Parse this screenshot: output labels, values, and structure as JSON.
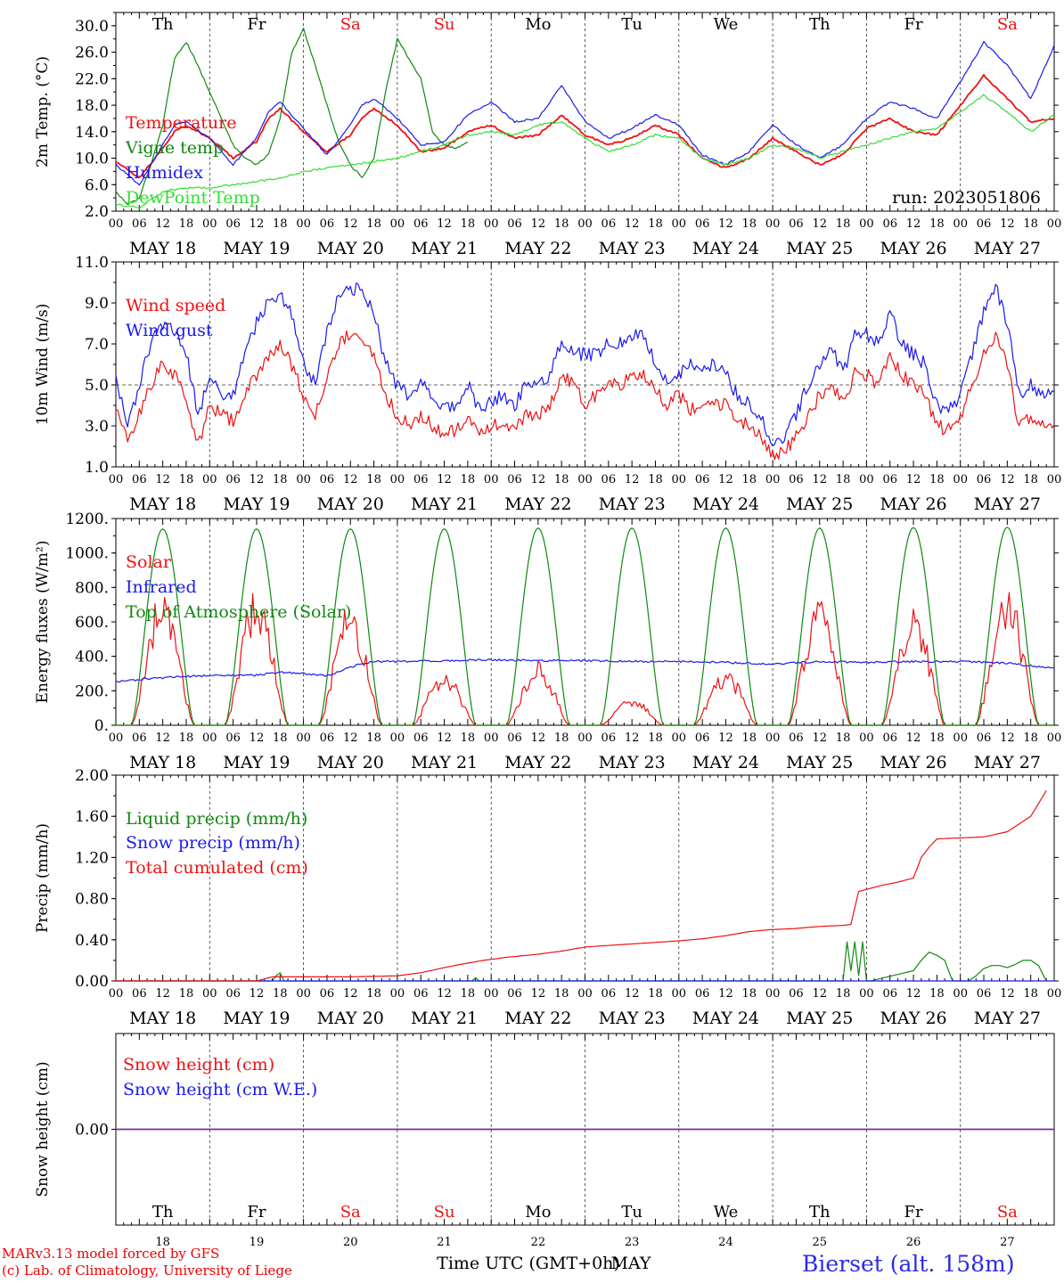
{
  "meta": {
    "run_label": "run: 2023051806",
    "footer_model": "MARv3.13 model forced by GFS",
    "footer_lab": "(c) Lab. of Climatology, University of Liege",
    "x_title": "Time UTC (GMT+0h)",
    "x_month": "MAY",
    "station": "Bierset (alt. 158m)"
  },
  "time_axis": {
    "hour_ticks": [
      "00",
      "06",
      "12",
      "18"
    ],
    "dates": [
      "MAY 18",
      "MAY 19",
      "MAY 20",
      "MAY 21",
      "MAY 22",
      "MAY 23",
      "MAY 24",
      "MAY 25",
      "MAY 26",
      "MAY 27"
    ],
    "day_numbers": [
      "18",
      "19",
      "20",
      "21",
      "22",
      "23",
      "24",
      "25",
      "26",
      "27"
    ],
    "weekdays": [
      "Th",
      "Fr",
      "Sa",
      "Su",
      "Mo",
      "Tu",
      "We",
      "Th",
      "Fr",
      "Sa"
    ],
    "weekend_days": [
      2,
      3,
      9
    ]
  },
  "colors": {
    "red": "#ee1111",
    "blue": "#1a1aee",
    "green": "#118811",
    "lightgreen": "#33dd33",
    "purple": "#7a2a9a",
    "axis": "#000000"
  },
  "chart_data": [
    {
      "type": "line",
      "ylabel": "2m Temp. (°C)",
      "ylim": [
        2.0,
        32.0
      ],
      "yticks": [
        "2.0",
        "6.0",
        "10.0",
        "14.0",
        "18.0",
        "22.0",
        "26.0",
        "30.0"
      ],
      "x_unit": "hours since MAY 18 00 UTC",
      "series": [
        {
          "name": "Temperature",
          "color": "red",
          "x": [
            0,
            6,
            12,
            15,
            18,
            24,
            30,
            36,
            39,
            42,
            48,
            54,
            60,
            63,
            66,
            72,
            78,
            84,
            90,
            96,
            102,
            108,
            114,
            120,
            126,
            132,
            138,
            144,
            150,
            156,
            162,
            168,
            174,
            180,
            186,
            192,
            198,
            204,
            210,
            216,
            222,
            228,
            234,
            240
          ],
          "y": [
            9.5,
            7.0,
            11.5,
            14.0,
            15.0,
            13.0,
            10.0,
            12.5,
            16.0,
            17.5,
            14.0,
            11.0,
            13.5,
            16.0,
            17.5,
            15.0,
            11.0,
            11.5,
            14.0,
            15.0,
            13.0,
            13.5,
            16.5,
            13.5,
            12.0,
            13.0,
            15.0,
            13.5,
            10.0,
            8.5,
            10.0,
            13.0,
            11.0,
            9.0,
            10.5,
            14.5,
            16.0,
            14.0,
            13.5,
            18.0,
            22.5,
            19.0,
            15.5,
            16.0
          ]
        },
        {
          "name": "Vigne temp",
          "color": "green",
          "x": [
            0,
            3,
            6,
            9,
            12,
            15,
            18,
            21,
            24,
            27,
            30,
            33,
            36,
            39,
            42,
            45,
            48,
            51,
            54,
            57,
            60,
            63,
            66,
            69,
            72,
            75,
            78,
            81,
            84,
            87,
            90
          ],
          "y": [
            5.0,
            3.0,
            4.0,
            9.0,
            15.0,
            25.0,
            27.5,
            24.0,
            20.0,
            16.0,
            12.0,
            10.0,
            9.0,
            10.5,
            16.0,
            26.0,
            29.5,
            24.0,
            18.0,
            12.5,
            9.0,
            7.0,
            10.0,
            20.0,
            28.0,
            25.0,
            22.0,
            14.0,
            12.0,
            11.5,
            12.5
          ]
        },
        {
          "name": "Humidex",
          "color": "blue",
          "x": [
            0,
            6,
            12,
            15,
            18,
            24,
            30,
            36,
            39,
            42,
            48,
            54,
            60,
            63,
            66,
            72,
            78,
            84,
            90,
            96,
            102,
            108,
            114,
            120,
            126,
            132,
            138,
            144,
            150,
            156,
            162,
            168,
            174,
            180,
            186,
            192,
            198,
            204,
            210,
            216,
            222,
            228,
            234,
            240
          ],
          "y": [
            9.0,
            6.0,
            12.0,
            15.0,
            15.5,
            13.0,
            9.0,
            13.0,
            17.0,
            18.5,
            14.5,
            10.5,
            15.0,
            18.0,
            19.0,
            16.0,
            12.0,
            12.5,
            16.5,
            18.5,
            15.5,
            16.0,
            21.0,
            15.5,
            13.0,
            14.5,
            16.5,
            15.0,
            10.5,
            9.0,
            11.0,
            15.0,
            12.0,
            10.0,
            12.0,
            16.0,
            18.5,
            17.5,
            16.0,
            21.5,
            27.5,
            24.0,
            19.0,
            27.0
          ]
        },
        {
          "name": "DewPoint Temp",
          "color": "lightgreen",
          "x": [
            0,
            6,
            12,
            18,
            24,
            30,
            36,
            42,
            48,
            54,
            60,
            66,
            72,
            78,
            84,
            90,
            96,
            102,
            108,
            114,
            120,
            126,
            132,
            138,
            144,
            150,
            156,
            162,
            168,
            174,
            180,
            186,
            192,
            198,
            204,
            210,
            216,
            222,
            228,
            234,
            240
          ],
          "y": [
            3.0,
            2.5,
            5.0,
            5.5,
            5.5,
            6.0,
            6.5,
            7.0,
            8.0,
            8.5,
            9.0,
            9.5,
            10.0,
            11.0,
            12.0,
            13.5,
            14.0,
            13.5,
            15.0,
            15.5,
            13.0,
            11.0,
            12.0,
            13.5,
            13.0,
            10.0,
            9.0,
            10.0,
            12.0,
            11.5,
            10.0,
            11.0,
            12.0,
            13.0,
            14.0,
            14.5,
            17.0,
            19.5,
            17.0,
            14.0,
            16.5
          ]
        }
      ]
    },
    {
      "type": "line",
      "ylabel": "10m Wind (m/s)",
      "ylim": [
        1.0,
        11.0
      ],
      "yticks": [
        "1.0",
        "3.0",
        "5.0",
        "7.0",
        "9.0",
        "11.0"
      ],
      "ref_line": 5.0,
      "x_unit": "hours since MAY 18 00 UTC",
      "series": [
        {
          "name": "Wind speed",
          "color": "red",
          "x": [
            0,
            3,
            6,
            9,
            12,
            15,
            18,
            21,
            24,
            27,
            30,
            33,
            36,
            39,
            42,
            45,
            48,
            51,
            54,
            57,
            60,
            63,
            66,
            69,
            72,
            75,
            78,
            81,
            84,
            87,
            90,
            93,
            96,
            99,
            102,
            105,
            108,
            111,
            114,
            117,
            120,
            123,
            126,
            129,
            132,
            135,
            138,
            141,
            144,
            147,
            150,
            153,
            156,
            159,
            162,
            165,
            168,
            171,
            174,
            177,
            180,
            183,
            186,
            189,
            192,
            195,
            198,
            201,
            204,
            207,
            210,
            213,
            216,
            219,
            222,
            225,
            228,
            231,
            234,
            237,
            240
          ],
          "y": [
            4.0,
            2.2,
            3.5,
            5.0,
            6.0,
            5.5,
            4.5,
            2.0,
            4.0,
            3.5,
            3.2,
            4.5,
            5.5,
            6.5,
            7.0,
            6.0,
            4.5,
            3.5,
            5.5,
            7.0,
            7.5,
            7.0,
            6.5,
            4.5,
            3.5,
            3.0,
            3.5,
            3.0,
            2.5,
            2.8,
            3.5,
            2.5,
            3.0,
            3.2,
            2.8,
            3.5,
            3.5,
            4.0,
            5.5,
            5.0,
            4.0,
            4.5,
            5.0,
            5.0,
            5.3,
            5.5,
            4.8,
            4.0,
            4.5,
            3.8,
            3.9,
            4.2,
            4.0,
            3.3,
            3.0,
            2.5,
            1.5,
            1.8,
            2.5,
            3.5,
            4.5,
            5.0,
            4.0,
            5.5,
            5.5,
            5.0,
            6.5,
            5.5,
            5.0,
            4.5,
            3.0,
            2.8,
            3.5,
            5.0,
            6.5,
            7.5,
            6.0,
            3.0,
            3.5,
            3.0,
            3.2
          ]
        },
        {
          "name": "Wind gust",
          "color": "blue",
          "x": [
            0,
            3,
            6,
            9,
            12,
            15,
            18,
            21,
            24,
            27,
            30,
            33,
            36,
            39,
            42,
            45,
            48,
            51,
            54,
            57,
            60,
            63,
            66,
            69,
            72,
            75,
            78,
            81,
            84,
            87,
            90,
            93,
            96,
            99,
            102,
            105,
            108,
            111,
            114,
            117,
            120,
            123,
            126,
            129,
            132,
            135,
            138,
            141,
            144,
            147,
            150,
            153,
            156,
            159,
            162,
            165,
            168,
            171,
            174,
            177,
            180,
            183,
            186,
            189,
            192,
            195,
            198,
            201,
            204,
            207,
            210,
            213,
            216,
            219,
            222,
            225,
            228,
            231,
            234,
            237,
            240
          ],
          "y": [
            5.5,
            3.0,
            5.0,
            7.0,
            8.0,
            7.5,
            6.5,
            3.5,
            5.5,
            4.5,
            4.5,
            6.5,
            8.0,
            9.0,
            9.5,
            8.5,
            6.0,
            5.0,
            7.5,
            9.5,
            9.8,
            9.5,
            8.5,
            6.0,
            5.0,
            4.5,
            5.0,
            4.5,
            4.0,
            4.0,
            5.0,
            3.8,
            4.2,
            4.5,
            4.0,
            5.0,
            5.0,
            5.5,
            7.0,
            6.5,
            6.5,
            6.5,
            7.0,
            7.0,
            7.3,
            7.5,
            6.0,
            5.0,
            5.5,
            6.0,
            5.8,
            6.0,
            5.5,
            4.5,
            4.0,
            3.5,
            2.0,
            2.5,
            3.5,
            5.0,
            6.0,
            7.0,
            5.5,
            7.5,
            7.5,
            7.0,
            8.5,
            7.0,
            6.5,
            6.0,
            4.0,
            3.8,
            4.5,
            6.5,
            8.5,
            9.8,
            8.0,
            4.5,
            5.0,
            4.5,
            4.5
          ]
        }
      ]
    },
    {
      "type": "line",
      "ylabel": "Energy fluxes (W/m²)",
      "ylim": [
        0,
        1200
      ],
      "yticks": [
        "0.",
        "200.",
        "400.",
        "600.",
        "800.",
        "1000.",
        "1200."
      ],
      "x_unit": "hours since MAY 18 00 UTC",
      "series": [
        {
          "name": "Solar",
          "color": "red",
          "daily_peak": [
            800,
            820,
            720,
            330,
            380,
            160,
            330,
            750,
            700,
            810
          ]
        },
        {
          "name": "Infrared",
          "color": "blue",
          "x": [
            0,
            12,
            24,
            36,
            42,
            48,
            54,
            60,
            66,
            72,
            84,
            96,
            108,
            120,
            132,
            144,
            156,
            168,
            180,
            192,
            204,
            216,
            228,
            240
          ],
          "y": [
            255,
            275,
            290,
            290,
            310,
            300,
            285,
            340,
            370,
            370,
            375,
            380,
            375,
            375,
            370,
            370,
            365,
            355,
            370,
            365,
            370,
            370,
            360,
            330
          ]
        },
        {
          "name": "Top of Atmosphere (Solar)",
          "color": "green",
          "daily_peak": [
            1140,
            1140,
            1140,
            1140,
            1145,
            1145,
            1145,
            1145,
            1148,
            1150
          ]
        }
      ]
    },
    {
      "type": "line",
      "ylabel": "Precip (mm/h)",
      "ylim": [
        0.0,
        2.0
      ],
      "yticks": [
        "0.00",
        "0.40",
        "0.80",
        "1.20",
        "1.60",
        "2.00"
      ],
      "x_unit": "hours since MAY 18 00 UTC",
      "series": [
        {
          "name": "Liquid precip (mm/h)",
          "color": "green",
          "x": [
            0,
            40,
            41,
            42,
            43,
            90,
            91,
            92,
            93,
            186,
            187,
            188,
            189,
            190,
            191,
            192,
            193,
            204,
            206,
            208,
            210,
            212,
            214,
            218,
            220,
            222,
            224,
            226,
            228,
            230,
            232,
            234,
            236,
            238
          ],
          "y": [
            0,
            0,
            0.05,
            0.08,
            0,
            0,
            0,
            0.03,
            0,
            0,
            0.38,
            0.1,
            0.38,
            0.05,
            0.38,
            0.0,
            0,
            0.1,
            0.2,
            0.28,
            0.25,
            0.2,
            0,
            0,
            0.05,
            0.12,
            0.15,
            0.15,
            0.13,
            0.16,
            0.2,
            0.2,
            0.15,
            0
          ]
        },
        {
          "name": "Snow precip (mm/h)",
          "color": "blue",
          "x": [
            0,
            240
          ],
          "y": [
            0,
            0
          ]
        },
        {
          "name": "Total cumulated (cm)",
          "color": "red",
          "x": [
            0,
            36,
            40,
            48,
            60,
            72,
            78,
            84,
            88,
            94,
            100,
            108,
            114,
            120,
            132,
            144,
            150,
            156,
            162,
            168,
            174,
            180,
            186,
            188,
            190,
            196,
            200,
            204,
            206,
            208,
            210,
            216,
            222,
            228,
            234,
            238
          ],
          "y": [
            0,
            0,
            0.04,
            0.04,
            0.04,
            0.05,
            0.08,
            0.13,
            0.16,
            0.2,
            0.23,
            0.26,
            0.29,
            0.33,
            0.36,
            0.39,
            0.41,
            0.44,
            0.48,
            0.5,
            0.51,
            0.53,
            0.54,
            0.55,
            0.87,
            0.93,
            0.96,
            1.0,
            1.2,
            1.3,
            1.38,
            1.39,
            1.4,
            1.45,
            1.6,
            1.85
          ]
        }
      ]
    },
    {
      "type": "line",
      "ylabel": "Snow height (cm)",
      "ylim": [
        -1.0,
        1.0
      ],
      "yticks": [
        "0.00"
      ],
      "x_unit": "hours since MAY 18 00 UTC",
      "series": [
        {
          "name": "Snow height (cm)",
          "color": "red",
          "x": [
            0,
            240
          ],
          "y": [
            0,
            0
          ]
        },
        {
          "name": "Snow height (cm W.E.)",
          "color": "blue",
          "x": [
            0,
            240
          ],
          "y": [
            0,
            0
          ]
        }
      ]
    }
  ]
}
